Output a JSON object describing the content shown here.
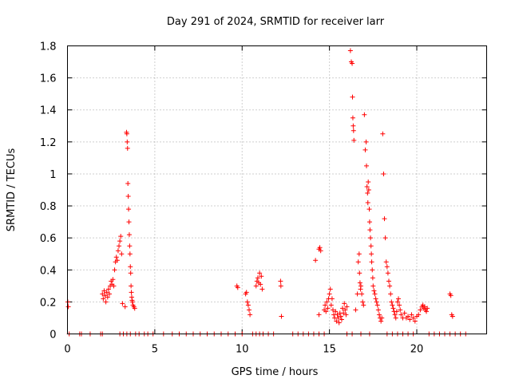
{
  "chart_data": {
    "type": "scatter",
    "title": "Day 291 of 2024, SRMTID for receiver larr",
    "xlabel": "GPS time / hours",
    "ylabel": "SRMTID / TECUs",
    "xlim": [
      0,
      24
    ],
    "ylim": [
      0,
      1.8
    ],
    "xticks": [
      0,
      5,
      10,
      15,
      20
    ],
    "xtick_labels": [
      "0",
      "5",
      "10",
      "15",
      "20"
    ],
    "yticks": [
      0,
      0.2,
      0.4,
      0.6,
      0.8,
      1.0,
      1.2,
      1.4,
      1.6,
      1.8
    ],
    "ytick_labels": [
      "0",
      "0.2",
      "0.4",
      "0.6",
      "0.8",
      "1",
      "1.2",
      "1.4",
      "1.6",
      "1.8"
    ],
    "grid": true,
    "marker": "+",
    "color": "#ff0000",
    "series": [
      {
        "name": "SRMTID",
        "points": [
          [
            0.02,
            0.2
          ],
          [
            0.05,
            0.17
          ],
          [
            0.1,
            0.0
          ],
          [
            0.7,
            0.0
          ],
          [
            0.8,
            0.0
          ],
          [
            1.3,
            0.0
          ],
          [
            1.9,
            0.0
          ],
          [
            2.0,
            0.0
          ],
          [
            2.0,
            0.25
          ],
          [
            2.05,
            0.22
          ],
          [
            2.1,
            0.27
          ],
          [
            2.15,
            0.24
          ],
          [
            2.2,
            0.2
          ],
          [
            2.25,
            0.26
          ],
          [
            2.3,
            0.23
          ],
          [
            2.35,
            0.28
          ],
          [
            2.4,
            0.25
          ],
          [
            2.45,
            0.3
          ],
          [
            2.5,
            0.33
          ],
          [
            2.55,
            0.31
          ],
          [
            2.6,
            0.34
          ],
          [
            2.65,
            0.3
          ],
          [
            2.7,
            0.4
          ],
          [
            2.75,
            0.45
          ],
          [
            2.8,
            0.48
          ],
          [
            2.85,
            0.46
          ],
          [
            2.9,
            0.52
          ],
          [
            2.95,
            0.55
          ],
          [
            3.0,
            0.58
          ],
          [
            3.05,
            0.61
          ],
          [
            3.1,
            0.5
          ],
          [
            3.15,
            0.19
          ],
          [
            3.3,
            0.17
          ],
          [
            3.38,
            1.26
          ],
          [
            3.4,
            1.25
          ],
          [
            3.42,
            1.2
          ],
          [
            3.44,
            1.16
          ],
          [
            3.46,
            0.94
          ],
          [
            3.48,
            0.86
          ],
          [
            3.5,
            0.78
          ],
          [
            3.52,
            0.7
          ],
          [
            3.54,
            0.62
          ],
          [
            3.56,
            0.55
          ],
          [
            3.58,
            0.5
          ],
          [
            3.6,
            0.42
          ],
          [
            3.62,
            0.38
          ],
          [
            3.64,
            0.3
          ],
          [
            3.66,
            0.26
          ],
          [
            3.68,
            0.23
          ],
          [
            3.7,
            0.21
          ],
          [
            3.72,
            0.2
          ],
          [
            3.75,
            0.18
          ],
          [
            3.8,
            0.17
          ],
          [
            3.85,
            0.16
          ],
          [
            3.0,
            0.0
          ],
          [
            3.2,
            0.0
          ],
          [
            3.4,
            0.0
          ],
          [
            3.6,
            0.0
          ],
          [
            3.9,
            0.0
          ],
          [
            4.1,
            0.0
          ],
          [
            4.4,
            0.0
          ],
          [
            4.6,
            0.0
          ],
          [
            4.9,
            0.0
          ],
          [
            5.5,
            0.0
          ],
          [
            6.0,
            0.0
          ],
          [
            6.4,
            0.0
          ],
          [
            6.8,
            0.0
          ],
          [
            7.2,
            0.0
          ],
          [
            7.6,
            0.0
          ],
          [
            8.0,
            0.0
          ],
          [
            8.4,
            0.0
          ],
          [
            8.8,
            0.0
          ],
          [
            9.2,
            0.0
          ],
          [
            9.6,
            0.0
          ],
          [
            10.0,
            0.0
          ],
          [
            9.7,
            0.3
          ],
          [
            9.75,
            0.29
          ],
          [
            10.2,
            0.25
          ],
          [
            10.25,
            0.26
          ],
          [
            10.3,
            0.2
          ],
          [
            10.35,
            0.18
          ],
          [
            10.4,
            0.15
          ],
          [
            10.45,
            0.12
          ],
          [
            10.6,
            0.0
          ],
          [
            10.8,
            0.0
          ],
          [
            11.0,
            0.0
          ],
          [
            11.2,
            0.0
          ],
          [
            11.5,
            0.0
          ],
          [
            11.8,
            0.0
          ],
          [
            10.8,
            0.3
          ],
          [
            10.85,
            0.33
          ],
          [
            10.9,
            0.35
          ],
          [
            10.95,
            0.32
          ],
          [
            11.0,
            0.38
          ],
          [
            11.05,
            0.31
          ],
          [
            11.1,
            0.36
          ],
          [
            11.15,
            0.28
          ],
          [
            12.2,
            0.33
          ],
          [
            12.22,
            0.3
          ],
          [
            12.25,
            0.11
          ],
          [
            12.9,
            0.0
          ],
          [
            13.2,
            0.0
          ],
          [
            13.5,
            0.0
          ],
          [
            13.8,
            0.0
          ],
          [
            14.1,
            0.0
          ],
          [
            14.4,
            0.0
          ],
          [
            14.7,
            0.0
          ],
          [
            14.2,
            0.46
          ],
          [
            14.4,
            0.53
          ],
          [
            14.45,
            0.54
          ],
          [
            14.5,
            0.52
          ],
          [
            14.4,
            0.12
          ],
          [
            14.7,
            0.15
          ],
          [
            14.75,
            0.18
          ],
          [
            14.8,
            0.14
          ],
          [
            14.85,
            0.2
          ],
          [
            14.9,
            0.16
          ],
          [
            14.95,
            0.22
          ],
          [
            15.0,
            0.25
          ],
          [
            15.05,
            0.28
          ],
          [
            15.1,
            0.18
          ],
          [
            15.15,
            0.22
          ],
          [
            15.2,
            0.15
          ],
          [
            15.25,
            0.12
          ],
          [
            15.3,
            0.1
          ],
          [
            15.35,
            0.14
          ],
          [
            15.4,
            0.08
          ],
          [
            15.45,
            0.12
          ],
          [
            15.5,
            0.1
          ],
          [
            15.55,
            0.07
          ],
          [
            15.6,
            0.13
          ],
          [
            15.65,
            0.11
          ],
          [
            15.7,
            0.09
          ],
          [
            15.75,
            0.16
          ],
          [
            15.8,
            0.13
          ],
          [
            15.85,
            0.19
          ],
          [
            15.9,
            0.15
          ],
          [
            15.95,
            0.12
          ],
          [
            16.0,
            0.17
          ],
          [
            16.2,
            1.77
          ],
          [
            16.25,
            1.7
          ],
          [
            16.3,
            1.69
          ],
          [
            16.32,
            1.48
          ],
          [
            16.34,
            1.35
          ],
          [
            16.36,
            1.3
          ],
          [
            16.38,
            1.27
          ],
          [
            16.4,
            1.21
          ],
          [
            16.0,
            0.0
          ],
          [
            16.3,
            0.0
          ],
          [
            16.8,
            0.0
          ],
          [
            17.3,
            0.0
          ],
          [
            16.5,
            0.15
          ],
          [
            16.6,
            0.25
          ],
          [
            16.65,
            0.45
          ],
          [
            16.7,
            0.5
          ],
          [
            16.72,
            0.38
          ],
          [
            16.75,
            0.32
          ],
          [
            16.78,
            0.28
          ],
          [
            16.8,
            0.3
          ],
          [
            16.85,
            0.25
          ],
          [
            16.9,
            0.2
          ],
          [
            16.95,
            0.18
          ],
          [
            17.0,
            1.37
          ],
          [
            17.05,
            1.15
          ],
          [
            17.1,
            1.2
          ],
          [
            17.12,
            1.05
          ],
          [
            17.15,
            0.92
          ],
          [
            17.18,
            0.88
          ],
          [
            17.2,
            0.82
          ],
          [
            17.22,
            0.95
          ],
          [
            17.25,
            0.9
          ],
          [
            17.28,
            0.78
          ],
          [
            17.3,
            0.7
          ],
          [
            17.32,
            0.65
          ],
          [
            17.35,
            0.6
          ],
          [
            17.38,
            0.55
          ],
          [
            17.4,
            0.5
          ],
          [
            17.42,
            0.45
          ],
          [
            17.45,
            0.4
          ],
          [
            17.48,
            0.35
          ],
          [
            17.5,
            0.3
          ],
          [
            17.55,
            0.27
          ],
          [
            17.6,
            0.25
          ],
          [
            17.65,
            0.22
          ],
          [
            17.7,
            0.2
          ],
          [
            17.75,
            0.18
          ],
          [
            17.8,
            0.15
          ],
          [
            17.85,
            0.12
          ],
          [
            17.9,
            0.1
          ],
          [
            17.95,
            0.08
          ],
          [
            18.0,
            0.1
          ],
          [
            18.05,
            1.25
          ],
          [
            18.1,
            1.0
          ],
          [
            18.15,
            0.72
          ],
          [
            18.2,
            0.6
          ],
          [
            18.25,
            0.45
          ],
          [
            18.3,
            0.42
          ],
          [
            18.35,
            0.38
          ],
          [
            18.4,
            0.33
          ],
          [
            18.45,
            0.3
          ],
          [
            18.5,
            0.25
          ],
          [
            18.55,
            0.2
          ],
          [
            18.6,
            0.18
          ],
          [
            18.65,
            0.16
          ],
          [
            18.7,
            0.14
          ],
          [
            18.75,
            0.12
          ],
          [
            18.8,
            0.1
          ],
          [
            18.85,
            0.14
          ],
          [
            18.9,
            0.2
          ],
          [
            18.95,
            0.22
          ],
          [
            19.0,
            0.18
          ],
          [
            19.05,
            0.15
          ],
          [
            19.1,
            0.12
          ],
          [
            19.2,
            0.1
          ],
          [
            19.3,
            0.13
          ],
          [
            19.4,
            0.1
          ],
          [
            19.5,
            0.11
          ],
          [
            19.6,
            0.09
          ],
          [
            19.7,
            0.12
          ],
          [
            19.8,
            0.1
          ],
          [
            19.9,
            0.08
          ],
          [
            20.0,
            0.11
          ],
          [
            20.1,
            0.12
          ],
          [
            20.2,
            0.15
          ],
          [
            20.3,
            0.17
          ],
          [
            20.35,
            0.18
          ],
          [
            20.4,
            0.16
          ],
          [
            20.45,
            0.17
          ],
          [
            20.5,
            0.15
          ],
          [
            20.55,
            0.14
          ],
          [
            20.6,
            0.16
          ],
          [
            18.3,
            0.0
          ],
          [
            18.6,
            0.0
          ],
          [
            18.9,
            0.0
          ],
          [
            19.2,
            0.0
          ],
          [
            19.5,
            0.0
          ],
          [
            19.8,
            0.0
          ],
          [
            20.7,
            0.0
          ],
          [
            21.0,
            0.0
          ],
          [
            21.3,
            0.0
          ],
          [
            21.6,
            0.0
          ],
          [
            21.9,
            0.0
          ],
          [
            22.2,
            0.0
          ],
          [
            22.5,
            0.0
          ],
          [
            22.8,
            0.0
          ],
          [
            21.9,
            0.25
          ],
          [
            21.95,
            0.24
          ],
          [
            22.0,
            0.12
          ],
          [
            22.05,
            0.11
          ]
        ]
      }
    ]
  }
}
